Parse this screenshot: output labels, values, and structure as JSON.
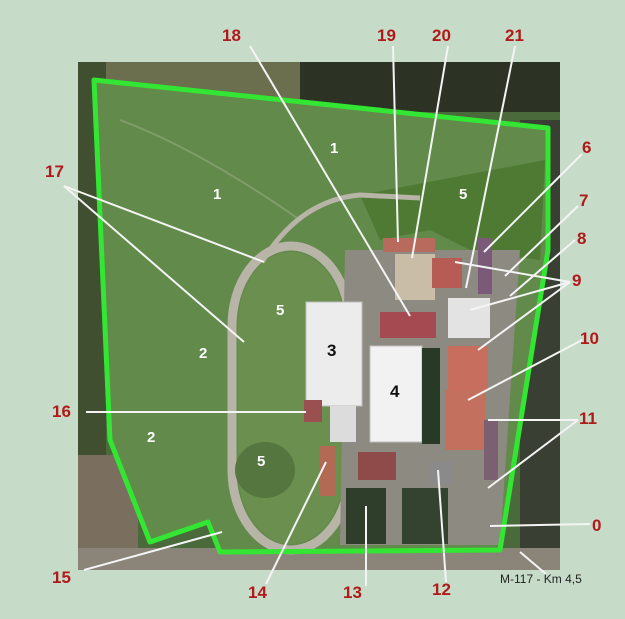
{
  "caption": {
    "road_label": "M-117 - Km 4,5"
  },
  "zones": {
    "field1": "1",
    "field2": "2",
    "grass5": "5"
  },
  "buildings": {
    "b3": "3",
    "b4": "4"
  },
  "callouts": [
    "0",
    "6",
    "7",
    "8",
    "9",
    "10",
    "11",
    "12",
    "13",
    "14",
    "15",
    "16",
    "17",
    "18",
    "19",
    "20",
    "21"
  ],
  "colors": {
    "background": "#c6dcc9",
    "boundary": "#33e633",
    "callout_text": "#b01a1a",
    "field": "#5f8748",
    "track": "#a9a49a",
    "roof_white": "#ececec",
    "roof_red": "#b86a5c"
  }
}
